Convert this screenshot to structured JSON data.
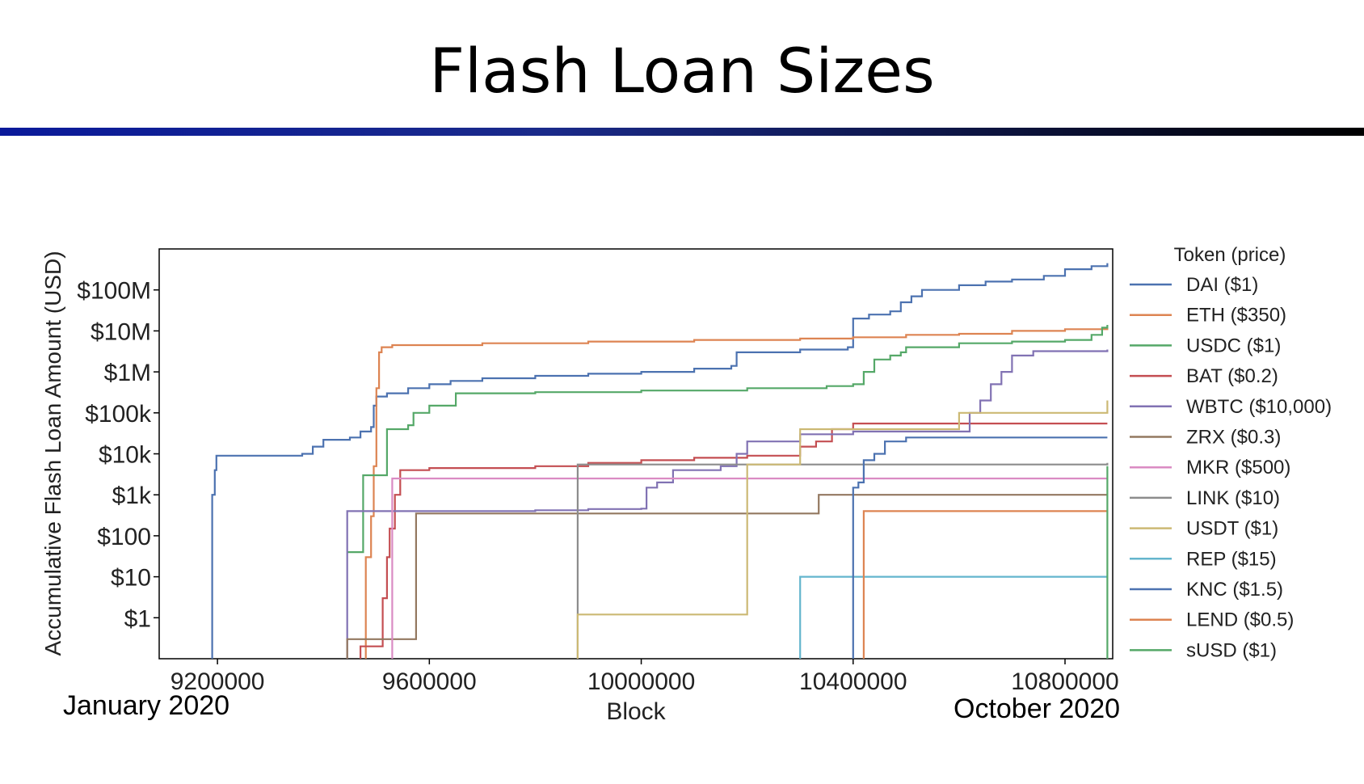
{
  "slide": {
    "title": "Flash Loan Sizes",
    "date_left": "January 2020",
    "date_right": "October 2020"
  },
  "chart_data": {
    "type": "line",
    "xlabel": "Block",
    "ylabel": "Accumulative Flash Loan Amount (USD)",
    "xlim": [
      9090000,
      10890000
    ],
    "x_ticks": [
      9200000,
      9600000,
      10000000,
      10400000,
      10800000
    ],
    "x_tick_labels": [
      "9200000",
      "9600000",
      "10000000",
      "10400000",
      "10800000"
    ],
    "y_scale": "log",
    "ylim": [
      0.1,
      1000000000
    ],
    "y_ticks": [
      1,
      10,
      100,
      1000,
      10000,
      100000,
      1000000,
      10000000,
      100000000
    ],
    "y_tick_labels": [
      "$1",
      "$10",
      "$100",
      "$1k",
      "$10k",
      "$100k",
      "$1M",
      "$10M",
      "$100M"
    ],
    "grid": false,
    "legend": {
      "title": "Token (price)",
      "placement": "outside-right"
    },
    "series": [
      {
        "name": "DAI ($1)",
        "color": "#4c72b0",
        "points": [
          [
            9190000,
            0.1
          ],
          [
            9190000,
            1000
          ],
          [
            9195000,
            4000
          ],
          [
            9198000,
            9000
          ],
          [
            9330000,
            9000
          ],
          [
            9360000,
            10000
          ],
          [
            9380000,
            15000
          ],
          [
            9400000,
            22000
          ],
          [
            9450000,
            25000
          ],
          [
            9470000,
            35000
          ],
          [
            9490000,
            45000
          ],
          [
            9495000,
            150000
          ],
          [
            9500000,
            250000
          ],
          [
            9520000,
            300000
          ],
          [
            9560000,
            400000
          ],
          [
            9600000,
            500000
          ],
          [
            9640000,
            600000
          ],
          [
            9700000,
            700000
          ],
          [
            9800000,
            800000
          ],
          [
            9900000,
            900000
          ],
          [
            10000000,
            1000000
          ],
          [
            10100000,
            1200000
          ],
          [
            10170000,
            1400000
          ],
          [
            10180000,
            3000000
          ],
          [
            10300000,
            3500000
          ],
          [
            10390000,
            4000000
          ],
          [
            10400000,
            20000000
          ],
          [
            10430000,
            25000000
          ],
          [
            10470000,
            30000000
          ],
          [
            10490000,
            50000000
          ],
          [
            10510000,
            70000000
          ],
          [
            10530000,
            100000000
          ],
          [
            10600000,
            130000000
          ],
          [
            10650000,
            160000000
          ],
          [
            10700000,
            180000000
          ],
          [
            10760000,
            220000000
          ],
          [
            10800000,
            320000000
          ],
          [
            10850000,
            380000000
          ],
          [
            10880000,
            450000000
          ]
        ]
      },
      {
        "name": "ETH ($350)",
        "color": "#dd8452",
        "points": [
          [
            9480000,
            0.1
          ],
          [
            9480000,
            30
          ],
          [
            9490000,
            300
          ],
          [
            9495000,
            5000
          ],
          [
            9500000,
            400000
          ],
          [
            9505000,
            3000000
          ],
          [
            9510000,
            4000000
          ],
          [
            9530000,
            4500000
          ],
          [
            9700000,
            5000000
          ],
          [
            9900000,
            5500000
          ],
          [
            10100000,
            6000000
          ],
          [
            10300000,
            6500000
          ],
          [
            10400000,
            7000000
          ],
          [
            10500000,
            8000000
          ],
          [
            10600000,
            8500000
          ],
          [
            10700000,
            10000000
          ],
          [
            10800000,
            11000000
          ],
          [
            10880000,
            13000000
          ]
        ]
      },
      {
        "name": "USDC ($1)",
        "color": "#55a868",
        "points": [
          [
            9445000,
            40
          ],
          [
            9460000,
            40
          ],
          [
            9475000,
            3000
          ],
          [
            9520000,
            40000
          ],
          [
            9560000,
            50000
          ],
          [
            9570000,
            100000
          ],
          [
            9600000,
            150000
          ],
          [
            9650000,
            300000
          ],
          [
            9800000,
            320000
          ],
          [
            10000000,
            350000
          ],
          [
            10200000,
            400000
          ],
          [
            10350000,
            450000
          ],
          [
            10400000,
            500000
          ],
          [
            10420000,
            1000000
          ],
          [
            10440000,
            2000000
          ],
          [
            10470000,
            2500000
          ],
          [
            10490000,
            3000000
          ],
          [
            10500000,
            4000000
          ],
          [
            10600000,
            5000000
          ],
          [
            10700000,
            5500000
          ],
          [
            10800000,
            6000000
          ],
          [
            10850000,
            8000000
          ],
          [
            10870000,
            12000000
          ],
          [
            10880000,
            14000000
          ]
        ]
      },
      {
        "name": "BAT ($0.2)",
        "color": "#c44e52",
        "points": [
          [
            9470000,
            0.1
          ],
          [
            9470000,
            0.2
          ],
          [
            9510000,
            0.2
          ],
          [
            9512000,
            3
          ],
          [
            9520000,
            30
          ],
          [
            9525000,
            150
          ],
          [
            9535000,
            1000
          ],
          [
            9545000,
            4000
          ],
          [
            9600000,
            4500
          ],
          [
            9800000,
            5000
          ],
          [
            9900000,
            6000
          ],
          [
            10000000,
            7000
          ],
          [
            10100000,
            8000
          ],
          [
            10200000,
            9000
          ],
          [
            10300000,
            15000
          ],
          [
            10330000,
            20000
          ],
          [
            10360000,
            40000
          ],
          [
            10400000,
            55000
          ],
          [
            10600000,
            55000
          ],
          [
            10880000,
            55000
          ]
        ]
      },
      {
        "name": "WBTC ($10,000)",
        "color": "#8172b3",
        "points": [
          [
            9445000,
            0.1
          ],
          [
            9445000,
            400
          ],
          [
            9700000,
            400
          ],
          [
            9800000,
            420
          ],
          [
            9900000,
            450
          ],
          [
            10000000,
            460
          ],
          [
            10010000,
            1500
          ],
          [
            10030000,
            2000
          ],
          [
            10060000,
            4000
          ],
          [
            10150000,
            5000
          ],
          [
            10180000,
            10000
          ],
          [
            10200000,
            20000
          ],
          [
            10300000,
            30000
          ],
          [
            10400000,
            35000
          ],
          [
            10600000,
            35000
          ],
          [
            10620000,
            100000
          ],
          [
            10640000,
            200000
          ],
          [
            10660000,
            500000
          ],
          [
            10680000,
            1000000
          ],
          [
            10700000,
            2500000
          ],
          [
            10740000,
            3200000
          ],
          [
            10880000,
            3500000
          ]
        ]
      },
      {
        "name": "ZRX ($0.3)",
        "color": "#937860",
        "points": [
          [
            9445000,
            0.1
          ],
          [
            9445000,
            0.3
          ],
          [
            9575000,
            0.3
          ],
          [
            9575000,
            350
          ],
          [
            9850000,
            350
          ],
          [
            10000000,
            350
          ],
          [
            10100000,
            350
          ],
          [
            10300000,
            350
          ],
          [
            10330000,
            350
          ],
          [
            10335000,
            1000
          ],
          [
            10600000,
            1000
          ],
          [
            10880000,
            1000
          ]
        ]
      },
      {
        "name": "MKR ($500)",
        "color": "#da8bc3",
        "points": [
          [
            9530000,
            0.1
          ],
          [
            9530000,
            2500
          ],
          [
            9700000,
            2500
          ],
          [
            10000000,
            2500
          ],
          [
            10400000,
            2500
          ],
          [
            10880000,
            2500
          ]
        ]
      },
      {
        "name": "LINK ($10)",
        "color": "#8c8c8c",
        "points": [
          [
            9880000,
            0.1
          ],
          [
            9880000,
            5500
          ],
          [
            10200000,
            5500
          ],
          [
            10500000,
            5500
          ],
          [
            10880000,
            6000
          ]
        ]
      },
      {
        "name": "USDT ($1)",
        "color": "#ccb974",
        "points": [
          [
            9880000,
            0.1
          ],
          [
            9880000,
            1.2
          ],
          [
            10200000,
            1.2
          ],
          [
            10200000,
            5500
          ],
          [
            10300000,
            5500
          ],
          [
            10300000,
            40000
          ],
          [
            10500000,
            40000
          ],
          [
            10600000,
            40000
          ],
          [
            10600000,
            100000
          ],
          [
            10800000,
            100000
          ],
          [
            10880000,
            100000
          ],
          [
            10880000,
            200000
          ]
        ]
      },
      {
        "name": "REP ($15)",
        "color": "#64b5cd",
        "points": [
          [
            10300000,
            0.1
          ],
          [
            10300000,
            10
          ],
          [
            10600000,
            10
          ],
          [
            10880000,
            10
          ]
        ]
      },
      {
        "name": "KNC ($1.5)",
        "color": "#4c72b0",
        "points": [
          [
            10400000,
            0.1
          ],
          [
            10400000,
            1500
          ],
          [
            10410000,
            2000
          ],
          [
            10420000,
            7000
          ],
          [
            10440000,
            10000
          ],
          [
            10460000,
            20000
          ],
          [
            10500000,
            25000
          ],
          [
            10880000,
            25000
          ]
        ]
      },
      {
        "name": "LEND ($0.5)",
        "color": "#dd8452",
        "points": [
          [
            10420000,
            0.1
          ],
          [
            10420000,
            400
          ],
          [
            10600000,
            400
          ],
          [
            10880000,
            400
          ]
        ]
      },
      {
        "name": "sUSD ($1)",
        "color": "#55a868",
        "points": [
          [
            10880000,
            0.1
          ],
          [
            10880000,
            5000
          ]
        ]
      }
    ]
  }
}
